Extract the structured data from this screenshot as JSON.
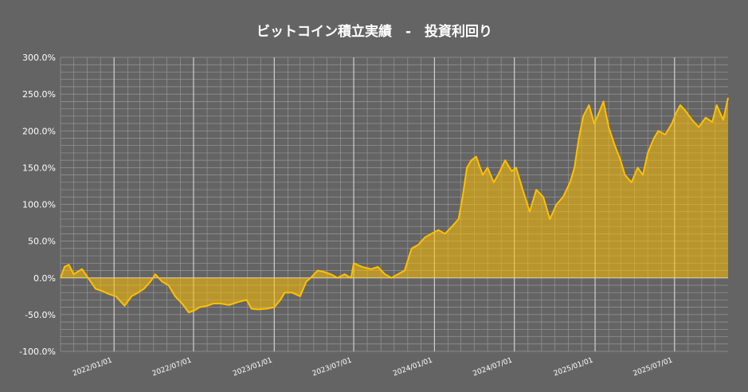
{
  "chart_data": {
    "type": "area",
    "title": "ビットコイン積立実績　-　投資利回り",
    "xlabel": "",
    "ylabel": "",
    "y_unit": "%",
    "ylim": [
      -100,
      300
    ],
    "xlim": [
      "2021-09-01",
      "2025-10-31"
    ],
    "yticks": [
      "300.0%",
      "250.0%",
      "200.0%",
      "150.0%",
      "100.0%",
      "50.0%",
      "0.0%",
      "-50.0%",
      "-100.0%"
    ],
    "xticks": [
      "2022/01/01",
      "2022/07/01",
      "2023/01/01",
      "2023/07/01",
      "2024/01/01",
      "2024/07/01",
      "2025/01/01",
      "2025/07/01"
    ],
    "grid": true,
    "legend": "none",
    "colors": {
      "background": "#646464",
      "line": "#FFC000",
      "fill": "#FFC000",
      "grid": "#969696",
      "text": "#FFFFFF"
    },
    "series": [
      {
        "x": [
          "2021-09-01",
          "2021-09-10",
          "2021-09-20",
          "2021-10-01",
          "2021-10-20",
          "2021-11-05",
          "2021-11-20",
          "2021-12-05",
          "2021-12-20",
          "2022-01-05",
          "2022-01-25",
          "2022-02-10",
          "2022-02-25",
          "2022-03-10",
          "2022-03-25",
          "2022-04-05",
          "2022-04-20",
          "2022-05-05",
          "2022-05-20",
          "2022-06-05",
          "2022-06-20",
          "2022-07-01",
          "2022-07-15",
          "2022-08-01",
          "2022-08-15",
          "2022-09-01",
          "2022-09-20",
          "2022-10-10",
          "2022-10-30",
          "2022-11-10",
          "2022-11-25",
          "2022-12-15",
          "2023-01-01",
          "2023-01-15",
          "2023-01-25",
          "2023-02-10",
          "2023-03-01",
          "2023-03-15",
          "2023-03-25",
          "2023-04-10",
          "2023-04-25",
          "2023-05-10",
          "2023-05-25",
          "2023-06-10",
          "2023-06-25",
          "2023-07-01",
          "2023-07-20",
          "2023-08-10",
          "2023-08-25",
          "2023-09-10",
          "2023-09-25",
          "2023-10-10",
          "2023-10-25",
          "2023-11-10",
          "2023-11-25",
          "2023-12-10",
          "2023-12-25",
          "2024-01-10",
          "2024-01-25",
          "2024-02-10",
          "2024-02-25",
          "2024-03-05",
          "2024-03-15",
          "2024-03-25",
          "2024-04-05",
          "2024-04-20",
          "2024-05-01",
          "2024-05-15",
          "2024-05-25",
          "2024-06-10",
          "2024-06-25",
          "2024-07-05",
          "2024-07-20",
          "2024-08-05",
          "2024-08-20",
          "2024-09-05",
          "2024-09-20",
          "2024-10-05",
          "2024-10-20",
          "2024-11-05",
          "2024-11-15",
          "2024-11-25",
          "2024-12-05",
          "2024-12-18",
          "2024-12-30",
          "2025-01-10",
          "2025-01-20",
          "2025-02-01",
          "2025-02-15",
          "2025-02-28",
          "2025-03-10",
          "2025-03-25",
          "2025-04-08",
          "2025-04-20",
          "2025-05-01",
          "2025-05-15",
          "2025-05-25",
          "2025-06-10",
          "2025-06-25",
          "2025-07-05",
          "2025-07-14",
          "2025-07-25",
          "2025-08-10",
          "2025-08-25",
          "2025-09-10",
          "2025-09-25",
          "2025-10-05",
          "2025-10-20",
          "2025-10-31"
        ],
        "y": [
          0,
          15,
          18,
          5,
          12,
          -2,
          -15,
          -18,
          -22,
          -25,
          -38,
          -25,
          -20,
          -15,
          -5,
          5,
          -5,
          -10,
          -25,
          -35,
          -47,
          -45,
          -40,
          -38,
          -35,
          -35,
          -37,
          -33,
          -30,
          -42,
          -43,
          -42,
          -40,
          -30,
          -20,
          -20,
          -25,
          -5,
          0,
          10,
          8,
          5,
          0,
          5,
          0,
          20,
          15,
          12,
          15,
          5,
          0,
          5,
          10,
          40,
          45,
          55,
          60,
          65,
          60,
          70,
          80,
          110,
          150,
          160,
          165,
          140,
          150,
          130,
          140,
          160,
          145,
          150,
          120,
          90,
          120,
          110,
          80,
          100,
          110,
          130,
          150,
          190,
          220,
          235,
          210,
          225,
          240,
          205,
          180,
          160,
          140,
          130,
          150,
          140,
          170,
          190,
          200,
          195,
          210,
          225,
          235,
          228,
          215,
          205,
          218,
          212,
          235,
          215,
          245
        ]
      }
    ]
  }
}
